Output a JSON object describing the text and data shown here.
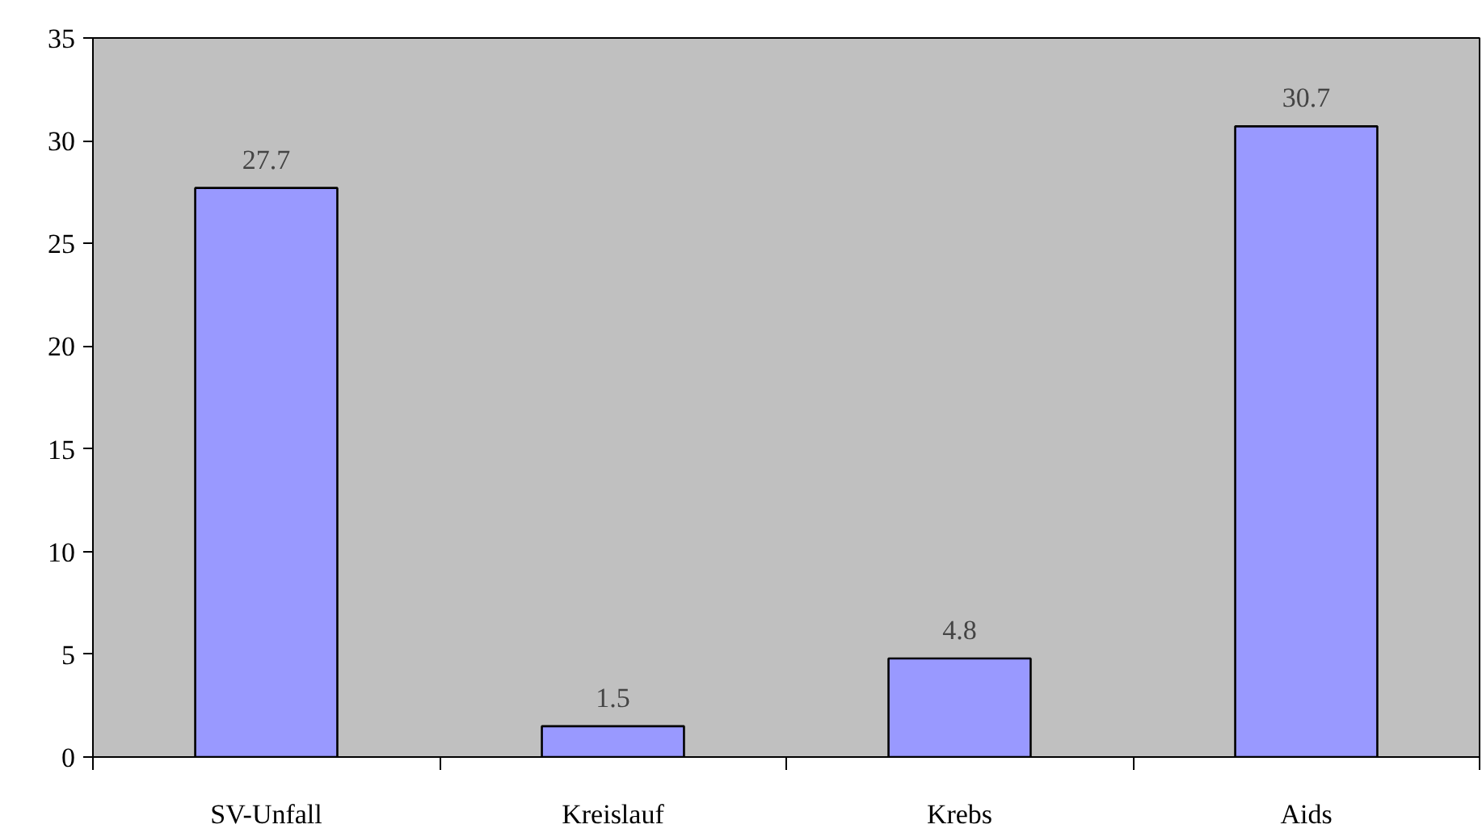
{
  "chart_data": {
    "type": "bar",
    "categories": [
      "SV-Unfall",
      "Kreislauf",
      "Krebs",
      "Aids"
    ],
    "values": [
      27.7,
      1.5,
      4.8,
      30.7
    ],
    "color": "#9999ff",
    "ylim": [
      0,
      35
    ],
    "yticks": [
      0,
      5,
      10,
      15,
      20,
      25,
      30,
      35
    ],
    "grid": false,
    "data_labels": true
  }
}
